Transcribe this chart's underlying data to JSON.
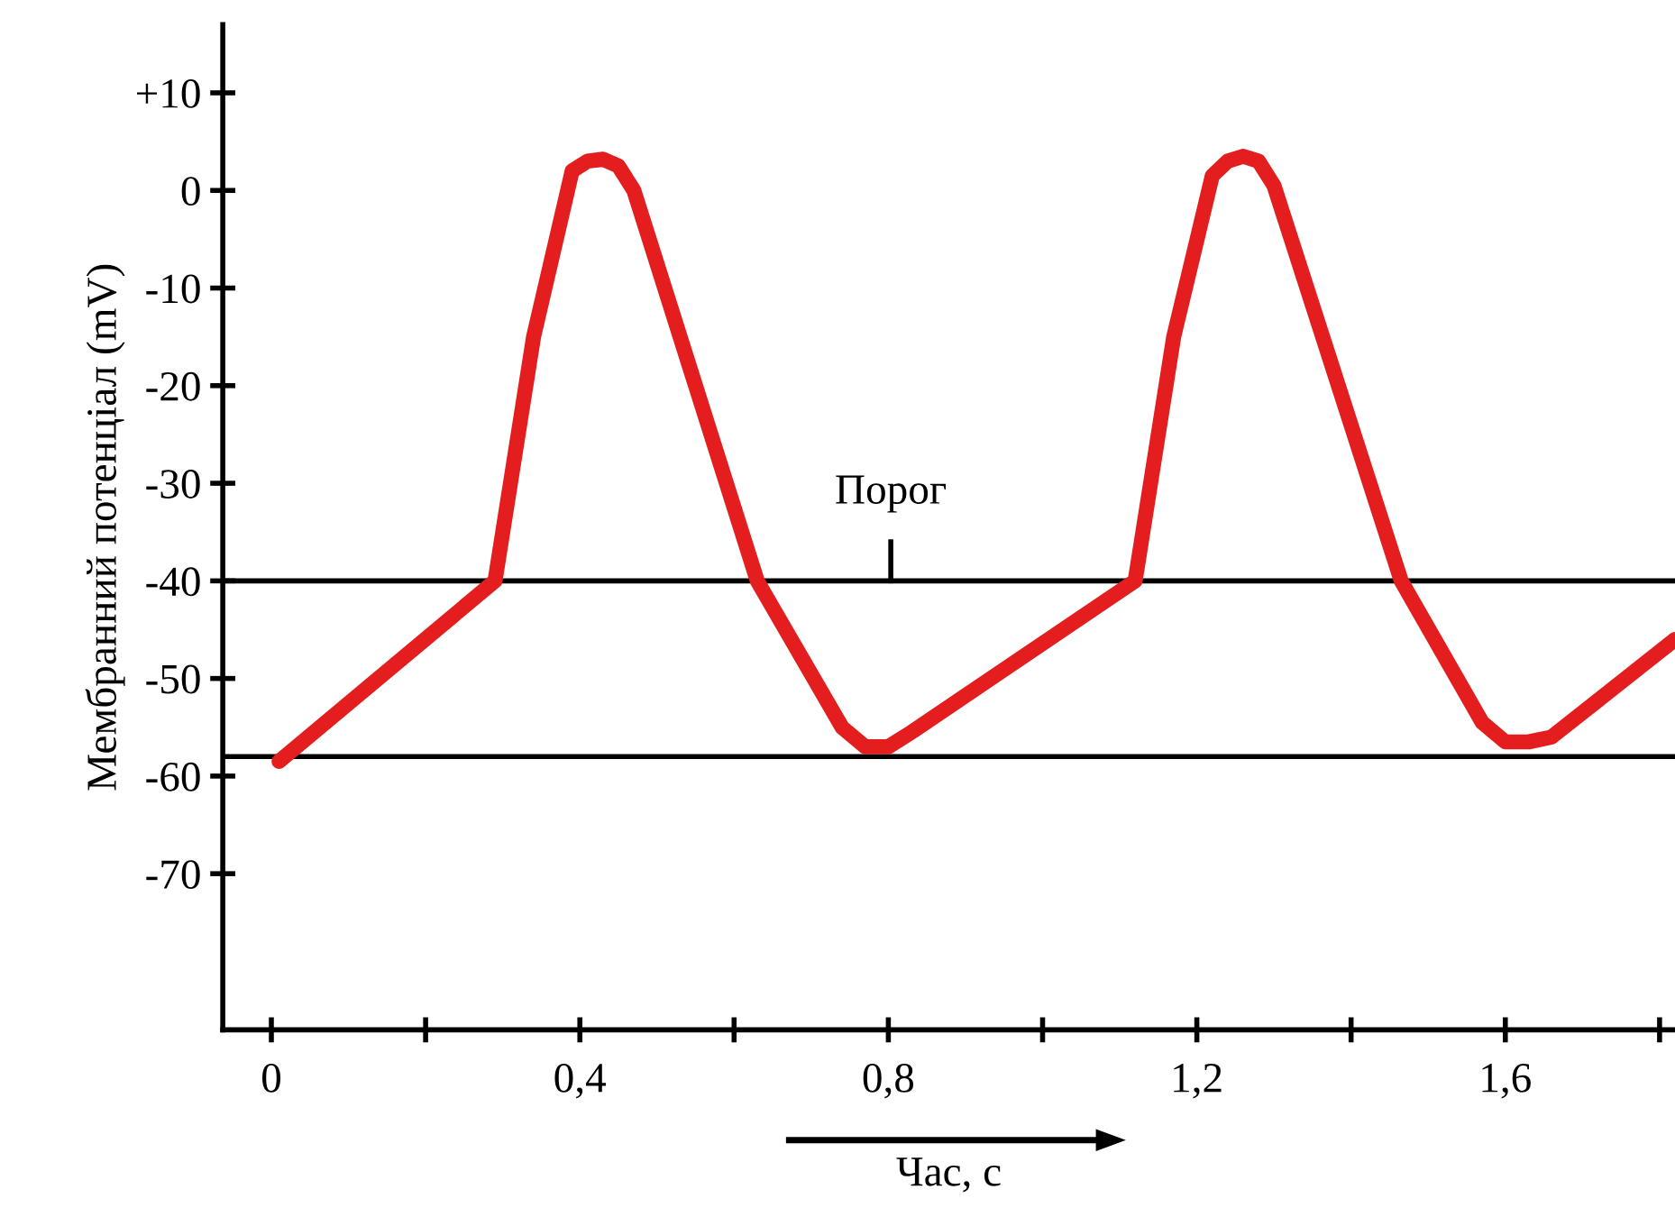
{
  "chart_data": {
    "type": "line",
    "xlabel": "Час, с",
    "ylabel": "Мембранний потенціал (mV)",
    "series": [
      {
        "color": "#e41e1e",
        "x": [
          0.01,
          0.29,
          0.34,
          0.39,
          0.41,
          0.43,
          0.45,
          0.47,
          0.63,
          0.74,
          0.77,
          0.8,
          0.83,
          1.12,
          1.17,
          1.22,
          1.24,
          1.26,
          1.28,
          1.3,
          1.465,
          1.57,
          1.6,
          1.63,
          1.66,
          1.82
        ],
        "values": [
          -58.5,
          -40,
          -15,
          2,
          3,
          3.2,
          2.5,
          0,
          -40,
          -55,
          -57,
          -57,
          -55.5,
          -40,
          -15,
          1.5,
          3,
          3.5,
          3,
          0.5,
          -40,
          -54.5,
          -56.5,
          -56.5,
          -56,
          -46
        ]
      }
    ],
    "xlim": [
      -0.063,
      1.82
    ],
    "ylim": [
      -86,
      17
    ],
    "xticks": [
      0,
      {
        "value": 0.2,
        "label": null
      },
      {
        "value": 0.4,
        "label": "0,4"
      },
      {
        "value": 0.6,
        "label": null
      },
      {
        "value": 0.8,
        "label": "0,8"
      },
      {
        "value": 1.0,
        "label": null
      },
      {
        "value": 1.2,
        "label": "1,2"
      },
      {
        "value": 1.4,
        "label": null
      },
      {
        "value": 1.6,
        "label": "1,6"
      },
      {
        "value": 1.8,
        "label": null
      }
    ],
    "yticks": [
      -70,
      -60,
      -50,
      -40,
      -30,
      -20,
      -10,
      0,
      {
        "value": 10,
        "label": "+10"
      }
    ],
    "ref_lines": [
      {
        "axis": "y",
        "value": -40,
        "label": "Порог",
        "color": "#000000"
      },
      {
        "axis": "y",
        "value": -58,
        "color": "#000000"
      }
    ],
    "grid": false,
    "legend": false,
    "marker": "none",
    "line_style": "solid"
  }
}
